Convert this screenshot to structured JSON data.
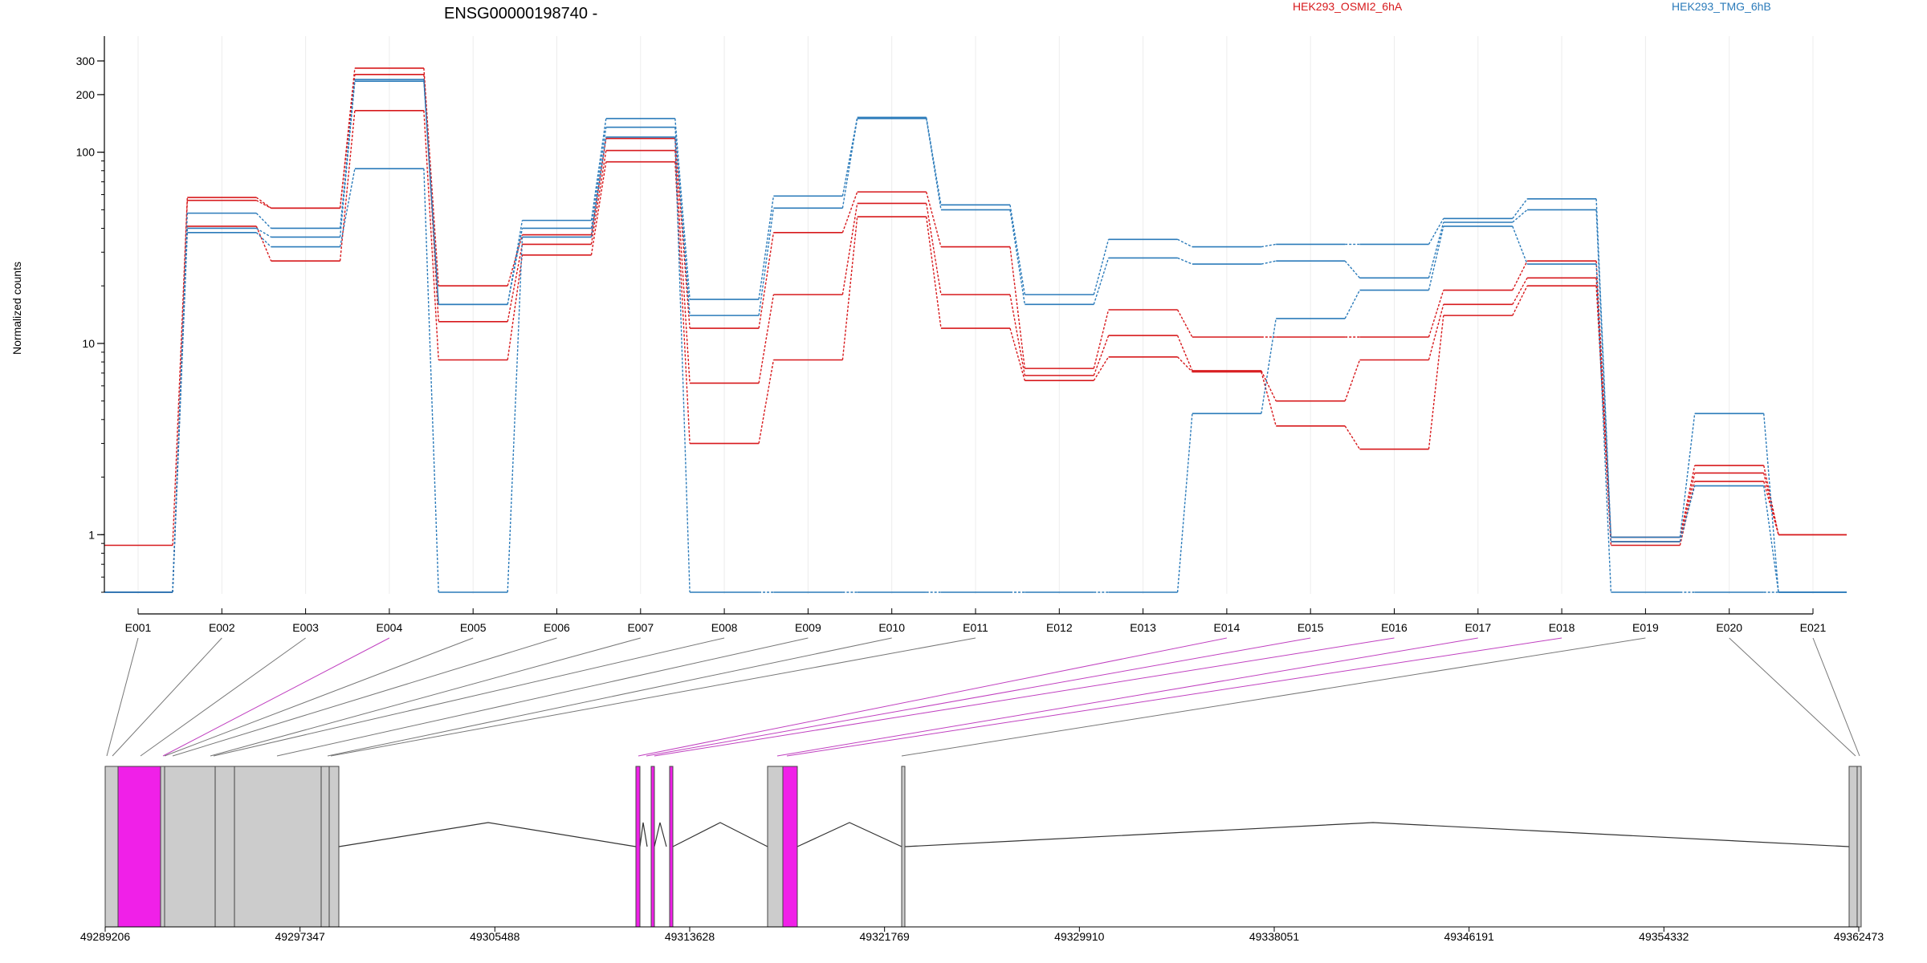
{
  "chart_data": {
    "type": "line",
    "title": "ENSG00000198740 -",
    "ylabel": "Normalized counts",
    "yscale": "log",
    "ylim": [
      0.5,
      350
    ],
    "yticks": [
      1,
      10,
      100,
      200,
      300
    ],
    "grid": true,
    "legend_position": "top",
    "categories": [
      "E001",
      "E002",
      "E003",
      "E004",
      "E005",
      "E006",
      "E007",
      "E008",
      "E009",
      "E010",
      "E011",
      "E012",
      "E013",
      "E014",
      "E015",
      "E016",
      "E017",
      "E018",
      "E019",
      "E020",
      "E021"
    ],
    "series": [
      {
        "name": "HEK293_OSMI2_6hA",
        "color": "#d7191c",
        "values": [
          0.88,
          58,
          51,
          275,
          20,
          37,
          118,
          12,
          38,
          62,
          32,
          7.4,
          15,
          10.8,
          10.8,
          10.8,
          19,
          27,
          0.97,
          2.3,
          1.0
        ]
      },
      {
        "name": "HEK293_OSMI2_6hA",
        "color": "#d7191c",
        "values": [
          0.5,
          56,
          51,
          255,
          13,
          33,
          102,
          6.2,
          18,
          54,
          18,
          6.8,
          11,
          7.2,
          5.0,
          8.2,
          16,
          22,
          0.92,
          2.1,
          1.0
        ]
      },
      {
        "name": "HEK293_OSMI2_6hA",
        "color": "#d7191c",
        "values": [
          0.5,
          41,
          27,
          165,
          8.2,
          29,
          89,
          3.0,
          8.2,
          46,
          12,
          6.4,
          8.5,
          7.1,
          3.7,
          2.8,
          14,
          20,
          0.88,
          1.9,
          1.0
        ]
      },
      {
        "name": "HEK293_TMG_6hB",
        "color": "#2b7bba",
        "values": [
          0.5,
          48,
          40,
          240,
          16,
          44,
          150,
          17,
          59,
          152,
          53,
          18,
          35,
          32,
          33,
          33,
          45,
          57,
          0.97,
          4.3,
          0.5
        ]
      },
      {
        "name": "HEK293_TMG_6hB",
        "color": "#2b7bba",
        "values": [
          0.5,
          40,
          36,
          235,
          16,
          40,
          135,
          14,
          51,
          150,
          50,
          16,
          28,
          26,
          27,
          22,
          43,
          50,
          0.92,
          1.8,
          0.5
        ]
      },
      {
        "name": "HEK293_TMG_6hB",
        "color": "#2b7bba",
        "values": [
          0.5,
          38,
          32,
          82,
          0.5,
          36,
          120,
          0.5,
          0.5,
          0.5,
          0.5,
          0.5,
          0.5,
          4.3,
          13.5,
          19,
          41,
          26,
          0.5,
          0.5,
          0.5
        ]
      }
    ],
    "legend": [
      {
        "label": "HEK293_OSMI2_6hA",
        "color": "#d7191c"
      },
      {
        "label": "HEK293_TMG_6hB",
        "color": "#2b7bba"
      }
    ],
    "genome_axis": {
      "start": 49289206,
      "end": 49362473,
      "tick_labels": [
        "49289206",
        "49297347",
        "49305488",
        "49313628",
        "49321769",
        "49329910",
        "49338051",
        "49346191",
        "49354332",
        "49362473"
      ],
      "exon_color": "#cccccc",
      "highlight_color": "#f020e8",
      "highlighted_exons": [
        "E004",
        "E014",
        "E015",
        "E016",
        "E017",
        "E018"
      ]
    }
  }
}
